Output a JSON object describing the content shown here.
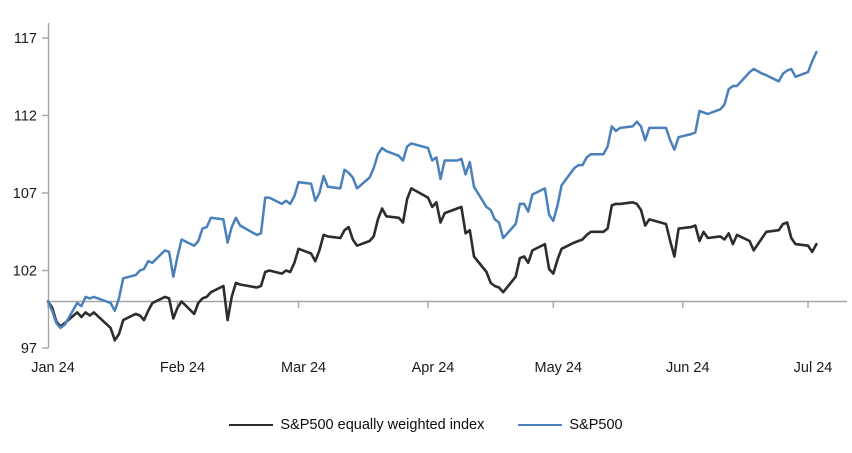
{
  "chart_data": {
    "type": "line",
    "title": "",
    "x_axis": {
      "start_date": "2024-01-01",
      "months": [
        {
          "date": "2024-01-01",
          "label": "Jan 24"
        },
        {
          "date": "2024-02-01",
          "label": "Feb 24"
        },
        {
          "date": "2024-03-01",
          "label": "Mar 24"
        },
        {
          "date": "2024-04-01",
          "label": "Apr 24"
        },
        {
          "date": "2024-05-01",
          "label": "May 24"
        },
        {
          "date": "2024-06-01",
          "label": "Jun 24"
        },
        {
          "date": "2024-07-01",
          "label": "Jul 24"
        }
      ]
    },
    "y_axis": {
      "ticks": [
        97,
        102,
        107,
        112,
        117
      ],
      "min": 97,
      "max": 117,
      "baseline": 100
    },
    "grid": "baseline-only",
    "legend_position": "bottom",
    "dates": [
      "2024-01-01",
      "2024-01-02",
      "2024-01-03",
      "2024-01-04",
      "2024-01-05",
      "2024-01-08",
      "2024-01-09",
      "2024-01-10",
      "2024-01-11",
      "2024-01-12",
      "2024-01-16",
      "2024-01-17",
      "2024-01-18",
      "2024-01-19",
      "2024-01-22",
      "2024-01-23",
      "2024-01-24",
      "2024-01-25",
      "2024-01-26",
      "2024-01-29",
      "2024-01-30",
      "2024-01-31",
      "2024-02-01",
      "2024-02-02",
      "2024-02-05",
      "2024-02-06",
      "2024-02-07",
      "2024-02-08",
      "2024-02-09",
      "2024-02-12",
      "2024-02-13",
      "2024-02-14",
      "2024-02-15",
      "2024-02-16",
      "2024-02-20",
      "2024-02-21",
      "2024-02-22",
      "2024-02-23",
      "2024-02-26",
      "2024-02-27",
      "2024-02-28",
      "2024-02-29",
      "2024-03-01",
      "2024-03-04",
      "2024-03-05",
      "2024-03-06",
      "2024-03-07",
      "2024-03-08",
      "2024-03-11",
      "2024-03-12",
      "2024-03-13",
      "2024-03-14",
      "2024-03-15",
      "2024-03-18",
      "2024-03-19",
      "2024-03-20",
      "2024-03-21",
      "2024-03-22",
      "2024-03-25",
      "2024-03-26",
      "2024-03-27",
      "2024-03-28",
      "2024-04-01",
      "2024-04-02",
      "2024-04-03",
      "2024-04-04",
      "2024-04-05",
      "2024-04-08",
      "2024-04-09",
      "2024-04-10",
      "2024-04-11",
      "2024-04-12",
      "2024-04-15",
      "2024-04-16",
      "2024-04-17",
      "2024-04-18",
      "2024-04-19",
      "2024-04-22",
      "2024-04-23",
      "2024-04-24",
      "2024-04-25",
      "2024-04-26",
      "2024-04-29",
      "2024-04-30",
      "2024-05-01",
      "2024-05-02",
      "2024-05-03",
      "2024-05-06",
      "2024-05-07",
      "2024-05-08",
      "2024-05-09",
      "2024-05-10",
      "2024-05-13",
      "2024-05-14",
      "2024-05-15",
      "2024-05-16",
      "2024-05-17",
      "2024-05-20",
      "2024-05-21",
      "2024-05-22",
      "2024-05-23",
      "2024-05-24",
      "2024-05-28",
      "2024-05-29",
      "2024-05-30",
      "2024-05-31",
      "2024-06-03",
      "2024-06-04",
      "2024-06-05",
      "2024-06-06",
      "2024-06-07",
      "2024-06-10",
      "2024-06-11",
      "2024-06-12",
      "2024-06-13",
      "2024-06-14",
      "2024-06-17",
      "2024-06-18",
      "2024-06-20",
      "2024-06-21",
      "2024-06-24",
      "2024-06-25",
      "2024-06-26",
      "2024-06-27",
      "2024-06-28",
      "2024-07-01",
      "2024-07-02",
      "2024-07-03"
    ],
    "series": [
      {
        "name": "S&P500 equally weighted index",
        "color": "#2d2d2d",
        "values": [
          100.0,
          99.6,
          98.7,
          98.4,
          98.6,
          99.3,
          99.0,
          99.3,
          99.1,
          99.3,
          98.3,
          97.5,
          97.9,
          98.8,
          99.2,
          99.1,
          98.8,
          99.4,
          99.9,
          100.3,
          100.2,
          98.9,
          99.6,
          100.0,
          99.2,
          99.9,
          100.2,
          100.3,
          100.6,
          101.0,
          98.8,
          100.3,
          101.2,
          101.1,
          100.9,
          101.0,
          101.9,
          102.0,
          101.8,
          102.0,
          101.9,
          102.5,
          103.4,
          103.1,
          102.6,
          103.3,
          104.3,
          104.2,
          104.1,
          104.6,
          104.8,
          104.0,
          103.6,
          103.9,
          104.2,
          105.3,
          106.0,
          105.5,
          105.4,
          105.1,
          106.6,
          107.3,
          106.7,
          106.1,
          106.4,
          105.1,
          105.7,
          106.0,
          106.1,
          104.4,
          104.6,
          102.9,
          101.9,
          101.2,
          101.0,
          100.9,
          100.6,
          101.6,
          102.8,
          102.9,
          102.5,
          103.3,
          103.7,
          102.1,
          101.8,
          102.7,
          103.4,
          103.8,
          103.9,
          104.0,
          104.3,
          104.5,
          104.5,
          104.7,
          106.2,
          106.3,
          106.3,
          106.4,
          106.3,
          105.9,
          104.9,
          105.3,
          105.0,
          103.9,
          102.9,
          104.7,
          104.8,
          104.9,
          103.9,
          104.5,
          104.1,
          104.2,
          104.0,
          104.4,
          103.7,
          104.3,
          103.9,
          103.3,
          104.1,
          104.5,
          104.6,
          105.0,
          105.1,
          104.1,
          103.7,
          103.6,
          103.2,
          103.7
        ]
      },
      {
        "name": "S&P500",
        "color": "#4a80bc",
        "values": [
          100.0,
          99.4,
          98.6,
          98.3,
          98.5,
          99.9,
          99.7,
          100.3,
          100.2,
          100.3,
          99.9,
          99.4,
          100.2,
          101.5,
          101.7,
          102.0,
          102.1,
          102.6,
          102.5,
          103.3,
          103.2,
          101.6,
          102.9,
          104.0,
          103.6,
          103.9,
          104.7,
          104.8,
          105.4,
          105.3,
          103.8,
          104.8,
          105.4,
          104.9,
          104.3,
          104.4,
          106.7,
          106.7,
          106.3,
          106.5,
          106.3,
          106.8,
          107.7,
          107.6,
          106.5,
          107.0,
          108.1,
          107.4,
          107.3,
          108.5,
          108.3,
          108.0,
          107.3,
          108.0,
          108.6,
          109.5,
          109.9,
          109.7,
          109.4,
          109.1,
          110.0,
          110.2,
          109.9,
          109.1,
          109.3,
          107.9,
          109.1,
          109.1,
          109.2,
          108.2,
          109.0,
          107.4,
          106.1,
          105.9,
          105.3,
          105.1,
          104.1,
          105.0,
          106.3,
          106.3,
          105.8,
          106.9,
          107.3,
          105.6,
          105.2,
          106.2,
          107.5,
          108.6,
          108.8,
          108.8,
          109.3,
          109.5,
          109.5,
          110.0,
          111.3,
          111.0,
          111.2,
          111.3,
          111.6,
          111.3,
          110.4,
          111.2,
          111.2,
          110.4,
          109.8,
          110.6,
          110.8,
          110.9,
          112.3,
          112.2,
          112.1,
          112.4,
          112.7,
          113.7,
          113.9,
          113.9,
          114.8,
          115.0,
          114.7,
          114.6,
          114.2,
          114.7,
          114.9,
          115.0,
          114.5,
          114.8,
          115.5,
          116.1
        ]
      }
    ]
  },
  "colors": {
    "axis": "#a6a6a6",
    "baseline": "#a6a6a6",
    "tick_label": "#1a1a1a",
    "background": "#ffffff"
  },
  "legend": {
    "items": [
      {
        "label": "S&P500 equally weighted index",
        "color": "#2d2d2d"
      },
      {
        "label": "S&P500",
        "color": "#4a80bc"
      }
    ]
  }
}
